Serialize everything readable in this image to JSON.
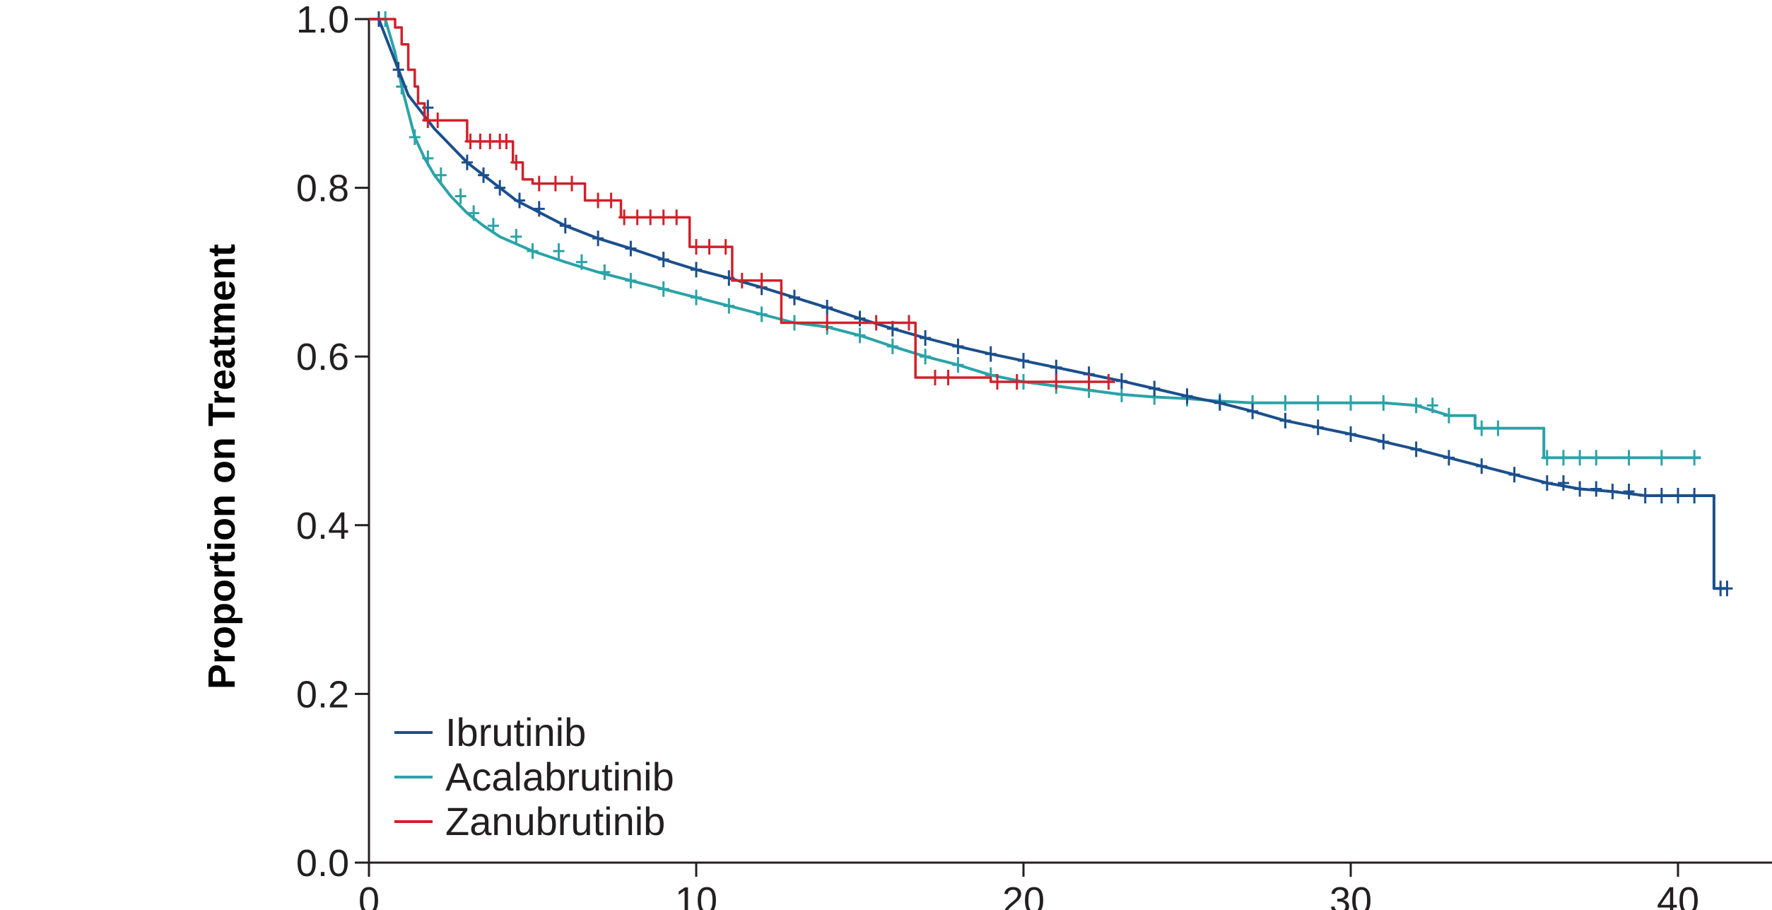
{
  "chart_data": {
    "type": "line",
    "title": "",
    "xlabel": "",
    "ylabel": "Proportion on Treatment",
    "xlim": [
      0,
      43
    ],
    "ylim": [
      0,
      1
    ],
    "x_ticks": [
      "0",
      "10",
      "20",
      "30",
      "40"
    ],
    "y_ticks": [
      "0.0",
      "0.2",
      "0.4",
      "0.6",
      "0.8",
      "1.0"
    ],
    "legend_position": "bottom-left",
    "grid": false,
    "series": [
      {
        "name": "Ibrutinib",
        "color": "#1b4f8c",
        "points": [
          [
            0,
            1.0
          ],
          [
            0.3,
            1.0
          ],
          [
            0.6,
            0.97
          ],
          [
            0.9,
            0.94
          ],
          [
            1.2,
            0.91
          ],
          [
            1.5,
            0.895
          ],
          [
            2,
            0.87
          ],
          [
            2.5,
            0.85
          ],
          [
            3,
            0.83
          ],
          [
            3.5,
            0.815
          ],
          [
            4,
            0.8
          ],
          [
            4.5,
            0.785
          ],
          [
            5,
            0.775
          ],
          [
            5.5,
            0.765
          ],
          [
            6,
            0.755
          ],
          [
            7,
            0.74
          ],
          [
            8,
            0.728
          ],
          [
            9,
            0.715
          ],
          [
            10,
            0.703
          ],
          [
            11,
            0.693
          ],
          [
            12,
            0.682
          ],
          [
            13,
            0.67
          ],
          [
            14,
            0.658
          ],
          [
            15,
            0.645
          ],
          [
            16,
            0.633
          ],
          [
            17,
            0.622
          ],
          [
            18,
            0.612
          ],
          [
            19,
            0.603
          ],
          [
            20,
            0.595
          ],
          [
            21,
            0.587
          ],
          [
            22,
            0.579
          ],
          [
            23,
            0.571
          ],
          [
            24,
            0.562
          ],
          [
            25,
            0.553
          ],
          [
            26,
            0.545
          ],
          [
            27,
            0.535
          ],
          [
            28,
            0.524
          ],
          [
            29,
            0.516
          ],
          [
            30,
            0.508
          ],
          [
            31,
            0.499
          ],
          [
            32,
            0.49
          ],
          [
            33,
            0.48
          ],
          [
            34,
            0.47
          ],
          [
            35,
            0.46
          ],
          [
            36,
            0.45
          ],
          [
            37,
            0.443
          ],
          [
            38,
            0.44
          ],
          [
            39,
            0.435
          ],
          [
            40,
            0.435
          ],
          [
            41.1,
            0.435
          ],
          [
            41.1,
            0.325
          ],
          [
            41.5,
            0.325
          ]
        ],
        "censor_x": [
          0.3,
          0.9,
          1.8,
          3.0,
          3.5,
          4.0,
          4.6,
          5.2,
          6.0,
          7.0,
          8.0,
          9.0,
          10.0,
          11.0,
          12.0,
          13.0,
          14.0,
          15.0,
          16.0,
          17.0,
          18.0,
          19.0,
          20.0,
          21.0,
          22.0,
          23.0,
          24.0,
          25.0,
          26.0,
          27.0,
          28.0,
          29.0,
          30.0,
          31.0,
          32.0,
          33.0,
          34.0,
          35.0,
          36.0,
          36.5,
          37.0,
          37.5,
          38.0,
          38.5,
          39.0,
          39.5,
          40.0,
          40.5,
          41.3,
          41.5
        ]
      },
      {
        "name": "Acalabrutinib",
        "color": "#2aa3a8",
        "points": [
          [
            0,
            1.0
          ],
          [
            0.5,
            1.0
          ],
          [
            0.8,
            0.96
          ],
          [
            1.0,
            0.92
          ],
          [
            1.2,
            0.89
          ],
          [
            1.4,
            0.86
          ],
          [
            1.7,
            0.835
          ],
          [
            2,
            0.815
          ],
          [
            2.5,
            0.79
          ],
          [
            3,
            0.77
          ],
          [
            3.5,
            0.755
          ],
          [
            4,
            0.742
          ],
          [
            5,
            0.725
          ],
          [
            6,
            0.712
          ],
          [
            7,
            0.7
          ],
          [
            8,
            0.69
          ],
          [
            9,
            0.68
          ],
          [
            10,
            0.67
          ],
          [
            11,
            0.66
          ],
          [
            12,
            0.65
          ],
          [
            13,
            0.64
          ],
          [
            14,
            0.635
          ],
          [
            15,
            0.625
          ],
          [
            16,
            0.612
          ],
          [
            17,
            0.6
          ],
          [
            18,
            0.59
          ],
          [
            19,
            0.578
          ],
          [
            20,
            0.57
          ],
          [
            21,
            0.565
          ],
          [
            22,
            0.56
          ],
          [
            23,
            0.555
          ],
          [
            24,
            0.552
          ],
          [
            25,
            0.55
          ],
          [
            26,
            0.547
          ],
          [
            27,
            0.545
          ],
          [
            28,
            0.545
          ],
          [
            30,
            0.545
          ],
          [
            31,
            0.545
          ],
          [
            32,
            0.542
          ],
          [
            33,
            0.53
          ],
          [
            33.8,
            0.53
          ],
          [
            33.8,
            0.515
          ],
          [
            35.9,
            0.515
          ],
          [
            35.9,
            0.48
          ],
          [
            40.7,
            0.48
          ]
        ],
        "censor_x": [
          0.5,
          1.0,
          1.4,
          1.8,
          2.2,
          2.8,
          3.2,
          3.8,
          4.5,
          5.0,
          5.8,
          6.5,
          7.2,
          8.0,
          9.0,
          10.0,
          11.0,
          12.0,
          13.0,
          14.0,
          15.0,
          16.0,
          17.0,
          18.0,
          19.0,
          20.0,
          21.0,
          22.0,
          23.0,
          24.0,
          25.0,
          26.0,
          27.0,
          28.0,
          29.0,
          30.0,
          31.0,
          32.0,
          32.5,
          33.0,
          34.0,
          34.5,
          36.0,
          36.5,
          37.0,
          37.5,
          38.5,
          39.5,
          40.5
        ]
      },
      {
        "name": "Zanubrutinib",
        "color": "#d0212b",
        "points": [
          [
            0,
            1.0
          ],
          [
            0.8,
            1.0
          ],
          [
            0.8,
            0.99
          ],
          [
            1.0,
            0.99
          ],
          [
            1.0,
            0.97
          ],
          [
            1.2,
            0.97
          ],
          [
            1.2,
            0.94
          ],
          [
            1.4,
            0.94
          ],
          [
            1.4,
            0.92
          ],
          [
            1.5,
            0.92
          ],
          [
            1.5,
            0.9
          ],
          [
            1.7,
            0.9
          ],
          [
            1.7,
            0.88
          ],
          [
            3.0,
            0.88
          ],
          [
            3.0,
            0.855
          ],
          [
            4.4,
            0.855
          ],
          [
            4.4,
            0.83
          ],
          [
            4.7,
            0.83
          ],
          [
            4.7,
            0.81
          ],
          [
            5.0,
            0.81
          ],
          [
            5.0,
            0.805
          ],
          [
            6.6,
            0.805
          ],
          [
            6.6,
            0.785
          ],
          [
            7.7,
            0.785
          ],
          [
            7.7,
            0.765
          ],
          [
            9.8,
            0.765
          ],
          [
            9.8,
            0.73
          ],
          [
            11.1,
            0.73
          ],
          [
            11.1,
            0.69
          ],
          [
            12.6,
            0.69
          ],
          [
            12.6,
            0.64
          ],
          [
            16.7,
            0.64
          ],
          [
            16.7,
            0.575
          ],
          [
            19.0,
            0.575
          ],
          [
            19.0,
            0.57
          ],
          [
            22.8,
            0.57
          ]
        ],
        "censor_x": [
          1.8,
          2.1,
          3.1,
          3.4,
          3.7,
          4.0,
          4.2,
          4.5,
          5.2,
          5.7,
          6.2,
          7.0,
          7.4,
          7.8,
          8.2,
          8.6,
          9.0,
          9.4,
          10.0,
          10.4,
          10.9,
          11.4,
          12.0,
          14.0,
          15.5,
          16.5,
          17.3,
          17.7,
          19.2,
          19.8,
          21.0,
          22.0,
          22.6
        ]
      }
    ]
  }
}
